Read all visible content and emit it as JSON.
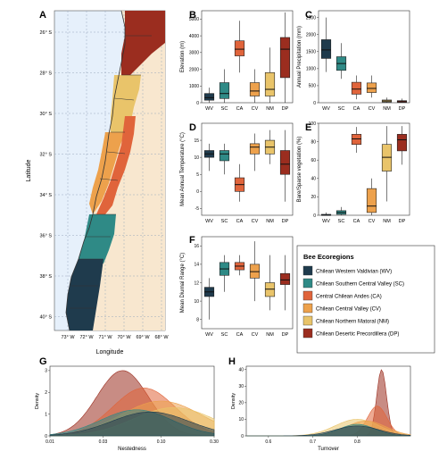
{
  "colors": {
    "WV": "#1f3b4d",
    "SC": "#2f8a86",
    "CA": "#e0643b",
    "CV": "#eda14c",
    "NM": "#e9c46a",
    "DP": "#9b2d1f",
    "ocean": "#e6f0fb",
    "land": "#f8e7cf"
  },
  "panel_letters": [
    "A",
    "B",
    "C",
    "D",
    "E",
    "F",
    "G",
    "H"
  ],
  "map": {
    "xlabel": "Longitude",
    "ylabel": "Latitude",
    "lat_ticks": [
      "26° S",
      "28° S",
      "30° S",
      "32° S",
      "34° S",
      "36° S",
      "38° S",
      "40° S"
    ],
    "lon_ticks": [
      "73° W",
      "72° W",
      "71° W",
      "70° W",
      "69° W",
      "68° W"
    ]
  },
  "legend": {
    "title": "Bee Ecoregions",
    "items": [
      {
        "key": "WV",
        "label": "Chilean Western Valdivian (WV)"
      },
      {
        "key": "SC",
        "label": "Chilean Southern Central Valley (SC)"
      },
      {
        "key": "CA",
        "label": "Central Chilean Andes (CA)"
      },
      {
        "key": "CV",
        "label": "Chilean Central Valley (CV)"
      },
      {
        "key": "NM",
        "label": "Chilean Northern Matoral (NM)"
      },
      {
        "key": "DP",
        "label": "Chilean Desertic Precordillera (DP)"
      }
    ]
  },
  "chart_data": [
    {
      "panel": "B",
      "type": "box",
      "ylabel": "Elevation (m)",
      "ylim": [
        0,
        5500
      ],
      "yticks": [
        "0",
        "1000",
        "2000",
        "3000",
        "4000",
        "5000"
      ],
      "categories": [
        "WV",
        "SC",
        "CA",
        "CV",
        "NM",
        "DP"
      ],
      "boxes": [
        {
          "min": 0,
          "q1": 150,
          "median": 300,
          "q3": 550,
          "max": 900
        },
        {
          "min": 0,
          "q1": 250,
          "median": 550,
          "q3": 1200,
          "max": 2000
        },
        {
          "min": 1800,
          "q1": 2800,
          "median": 3200,
          "q3": 3700,
          "max": 4900
        },
        {
          "min": 0,
          "q1": 400,
          "median": 700,
          "q3": 1200,
          "max": 2000
        },
        {
          "min": 0,
          "q1": 400,
          "median": 800,
          "q3": 1800,
          "max": 3300
        },
        {
          "min": 0,
          "q1": 1500,
          "median": 3200,
          "q3": 3900,
          "max": 5400
        }
      ]
    },
    {
      "panel": "E",
      "type": "box",
      "ylabel": "Annual Precipitation (mm)",
      "ylim": [
        0,
        2700
      ],
      "yticks": [
        "0",
        "500",
        "1000",
        "1500",
        "2000",
        "2500"
      ],
      "categories": [
        "WV",
        "SC",
        "CA",
        "CV",
        "NM",
        "DP"
      ],
      "boxes": [
        {
          "min": 900,
          "q1": 1300,
          "median": 1550,
          "q3": 1850,
          "max": 2500
        },
        {
          "min": 700,
          "q1": 950,
          "median": 1150,
          "q3": 1350,
          "max": 1750
        },
        {
          "min": 100,
          "q1": 250,
          "median": 400,
          "q3": 600,
          "max": 800
        },
        {
          "min": 150,
          "q1": 300,
          "median": 420,
          "q3": 580,
          "max": 800
        },
        {
          "min": 0,
          "q1": 20,
          "median": 50,
          "q3": 80,
          "max": 150
        },
        {
          "min": 0,
          "q1": 10,
          "median": 30,
          "q3": 60,
          "max": 120
        }
      ]
    },
    {
      "panel": "C",
      "type": "box",
      "ylabel": "Mean Annual Temperature (°C)",
      "ylim": [
        -7,
        20
      ],
      "yticks": [
        "-5",
        "0",
        "5",
        "10",
        "15"
      ],
      "categories": [
        "WV",
        "SC",
        "CA",
        "CV",
        "NM",
        "DP"
      ],
      "boxes": [
        {
          "min": 6,
          "q1": 10,
          "median": 11,
          "q3": 12,
          "max": 14
        },
        {
          "min": 5,
          "q1": 9,
          "median": 11,
          "q3": 12,
          "max": 14
        },
        {
          "min": -3,
          "q1": 0,
          "median": 2,
          "q3": 4,
          "max": 8
        },
        {
          "min": 6,
          "q1": 11,
          "median": 13,
          "q3": 14,
          "max": 17
        },
        {
          "min": 8,
          "q1": 11,
          "median": 13,
          "q3": 15,
          "max": 18
        },
        {
          "min": -3,
          "q1": 5,
          "median": 8,
          "q3": 12,
          "max": 18
        }
      ]
    },
    {
      "panel": "F",
      "type": "box",
      "ylabel": "Bare/Sparse vegetation (%)",
      "ylim": [
        0,
        100
      ],
      "yticks": [
        "0",
        "20",
        "40",
        "60",
        "80",
        "100"
      ],
      "categories": [
        "WV",
        "SC",
        "CA",
        "CV",
        "NM",
        "DP"
      ],
      "boxes": [
        {
          "min": 0,
          "q1": 0,
          "median": 0,
          "q3": 1,
          "max": 3
        },
        {
          "min": 0,
          "q1": 1,
          "median": 3,
          "q3": 5,
          "max": 9
        },
        {
          "min": 68,
          "q1": 77,
          "median": 83,
          "q3": 88,
          "max": 96
        },
        {
          "min": 0,
          "q1": 3,
          "median": 10,
          "q3": 29,
          "max": 40
        },
        {
          "min": 15,
          "q1": 48,
          "median": 63,
          "q3": 77,
          "max": 97
        },
        {
          "min": 55,
          "q1": 70,
          "median": 82,
          "q3": 88,
          "max": 97
        }
      ]
    },
    {
      "panel": "D",
      "type": "box",
      "ylabel": "Mean Diurnal Range (°C)",
      "ylim": [
        7,
        17
      ],
      "yticks": [
        "8",
        "10",
        "12",
        "14",
        "16"
      ],
      "categories": [
        "WV",
        "SC",
        "CA",
        "CV",
        "NM",
        "DP"
      ],
      "boxes": [
        {
          "min": 8,
          "q1": 10.5,
          "median": 11,
          "q3": 11.5,
          "max": 12.5
        },
        {
          "min": 11,
          "q1": 12.8,
          "median": 13.5,
          "q3": 14.2,
          "max": 15
        },
        {
          "min": 12.8,
          "q1": 13.4,
          "median": 13.8,
          "q3": 14.2,
          "max": 15
        },
        {
          "min": 10,
          "q1": 12.5,
          "median": 13.2,
          "q3": 14,
          "max": 16.5
        },
        {
          "min": 9,
          "q1": 10.5,
          "median": 11.3,
          "q3": 12,
          "max": 15
        },
        {
          "min": 9,
          "q1": 11.8,
          "median": 12.3,
          "q3": 13,
          "max": 15
        }
      ]
    },
    {
      "panel": "G",
      "type": "area",
      "xlabel": "Nestedness",
      "ylabel": "Density",
      "xscale": "log",
      "xlim": [
        0.01,
        0.3
      ],
      "ylim": [
        0,
        3.2
      ],
      "xticks": [
        "0.01",
        "0.03",
        "0.10",
        "0.30"
      ],
      "yticks": [
        "0",
        "1",
        "2",
        "3"
      ],
      "series": [
        {
          "key": "DP",
          "peak_x": 0.045,
          "peak_y": 3.0,
          "sd": 0.23
        },
        {
          "key": "CA",
          "peak_x": 0.07,
          "peak_y": 2.2,
          "sd": 0.28
        },
        {
          "key": "CV",
          "peak_x": 0.1,
          "peak_y": 1.6,
          "sd": 0.36
        },
        {
          "key": "NM",
          "peak_x": 0.13,
          "peak_y": 1.3,
          "sd": 0.36
        },
        {
          "key": "SC",
          "peak_x": 0.06,
          "peak_y": 1.2,
          "sd": 0.32
        },
        {
          "key": "WV",
          "peak_x": 0.08,
          "peak_y": 1.1,
          "sd": 0.35
        }
      ]
    },
    {
      "panel": "H",
      "type": "area",
      "xlabel": "Turnover",
      "ylabel": "Density",
      "xscale": "linear",
      "xlim": [
        0.55,
        0.92
      ],
      "ylim": [
        0,
        42
      ],
      "xticks": [
        "0.6",
        "0.7",
        "0.8"
      ],
      "yticks": [
        "0",
        "10",
        "20",
        "30",
        "40"
      ],
      "series": [
        {
          "key": "DP",
          "peak_x": 0.855,
          "peak_y": 40,
          "sd": 0.011
        },
        {
          "key": "CA",
          "peak_x": 0.845,
          "peak_y": 18,
          "sd": 0.022
        },
        {
          "key": "NM",
          "peak_x": 0.8,
          "peak_y": 10,
          "sd": 0.05
        },
        {
          "key": "CV",
          "peak_x": 0.82,
          "peak_y": 9,
          "sd": 0.045
        },
        {
          "key": "SC",
          "peak_x": 0.8,
          "peak_y": 7,
          "sd": 0.04
        },
        {
          "key": "WV",
          "peak_x": 0.8,
          "peak_y": 6,
          "sd": 0.05
        }
      ]
    }
  ]
}
